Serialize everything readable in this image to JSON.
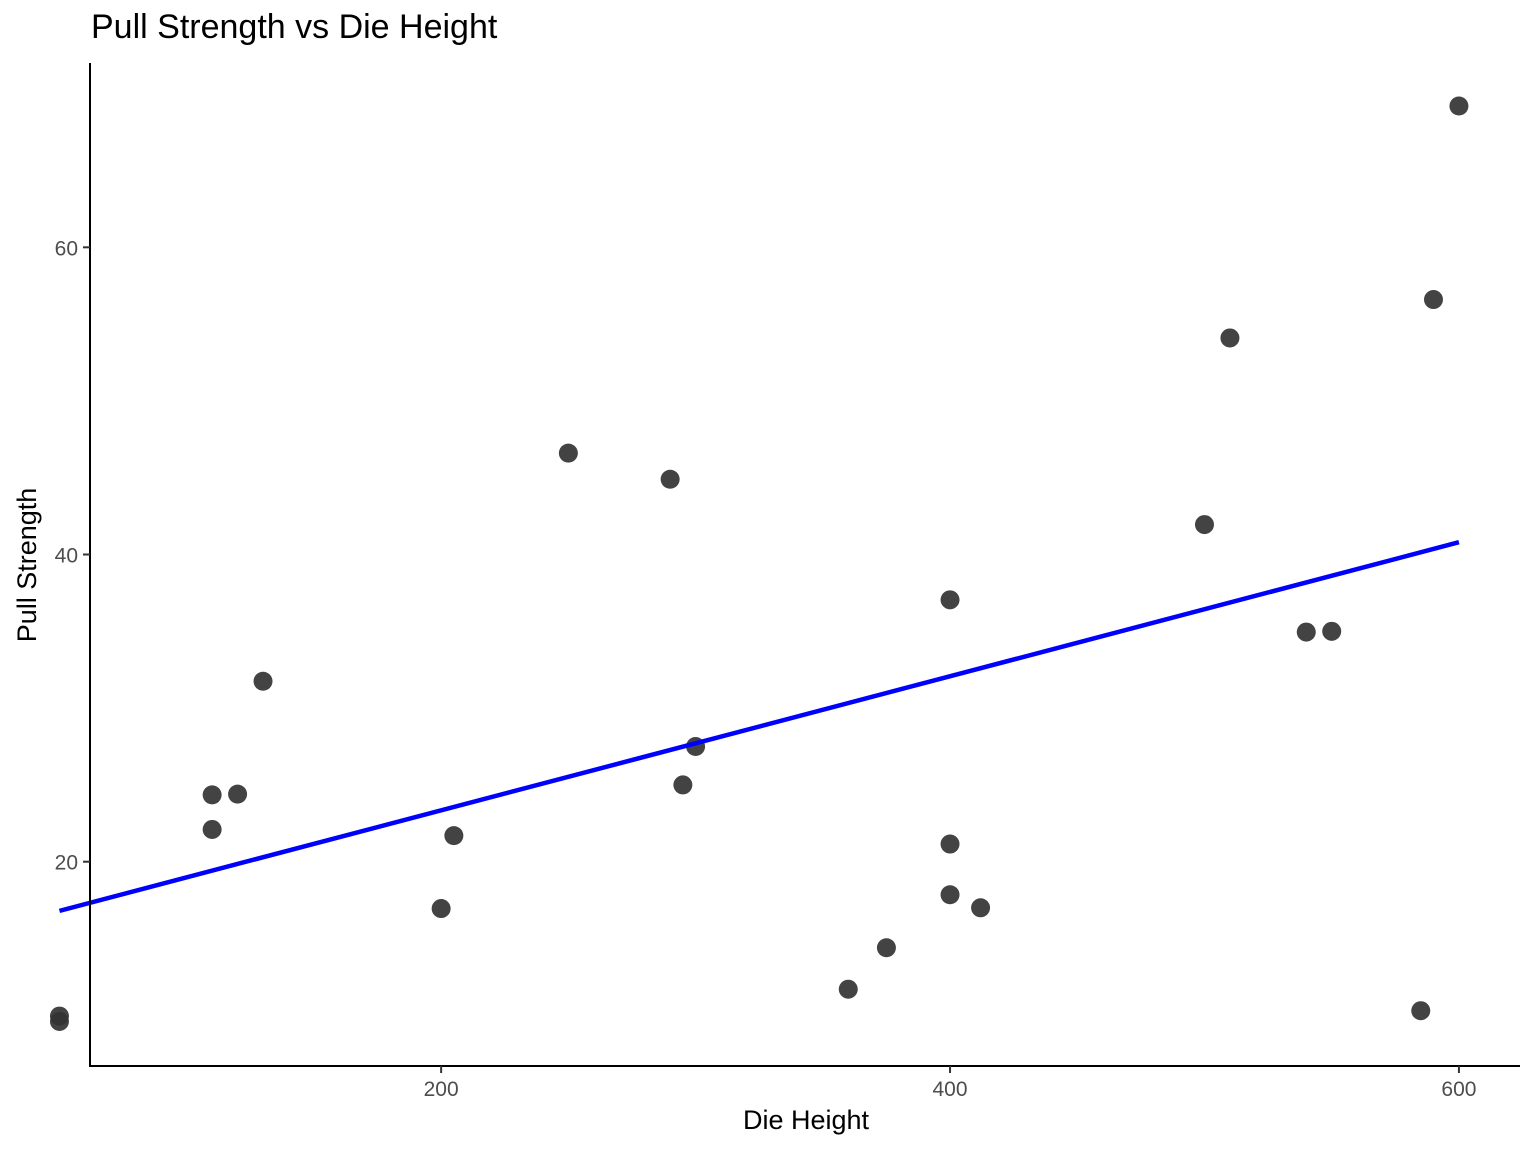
{
  "chart_data": {
    "type": "scatter",
    "title": "Pull Strength vs Die Height",
    "xlabel": "Die Height",
    "ylabel": "Pull Strength",
    "xlim": [
      62,
      624
    ],
    "ylim": [
      6.7,
      72
    ],
    "x_ticks": [
      200,
      400,
      600
    ],
    "y_ticks": [
      20,
      40,
      60
    ],
    "grid": false,
    "legend": "none",
    "point_color": "#333333",
    "line_color": "#0000ff",
    "points": [
      {
        "x": 50,
        "y": 9.95
      },
      {
        "x": 50,
        "y": 9.6
      },
      {
        "x": 110,
        "y": 24.35
      },
      {
        "x": 110,
        "y": 22.1
      },
      {
        "x": 120,
        "y": 24.4
      },
      {
        "x": 130,
        "y": 31.75
      },
      {
        "x": 200,
        "y": 16.95
      },
      {
        "x": 205,
        "y": 21.7
      },
      {
        "x": 250,
        "y": 46.6
      },
      {
        "x": 290,
        "y": 44.9
      },
      {
        "x": 295,
        "y": 25.0
      },
      {
        "x": 300,
        "y": 27.5
      },
      {
        "x": 360,
        "y": 11.7
      },
      {
        "x": 375,
        "y": 14.4
      },
      {
        "x": 400,
        "y": 37.05
      },
      {
        "x": 400,
        "y": 21.15
      },
      {
        "x": 400,
        "y": 17.85
      },
      {
        "x": 412,
        "y": 17.0
      },
      {
        "x": 500,
        "y": 41.95
      },
      {
        "x": 510,
        "y": 54.1
      },
      {
        "x": 540,
        "y": 34.95
      },
      {
        "x": 550,
        "y": 35.0
      },
      {
        "x": 585,
        "y": 10.3
      },
      {
        "x": 590,
        "y": 56.6
      },
      {
        "x": 600,
        "y": 69.2
      }
    ],
    "fit_line": {
      "x": [
        50,
        600
      ],
      "y": [
        16.8,
        40.8
      ]
    }
  }
}
